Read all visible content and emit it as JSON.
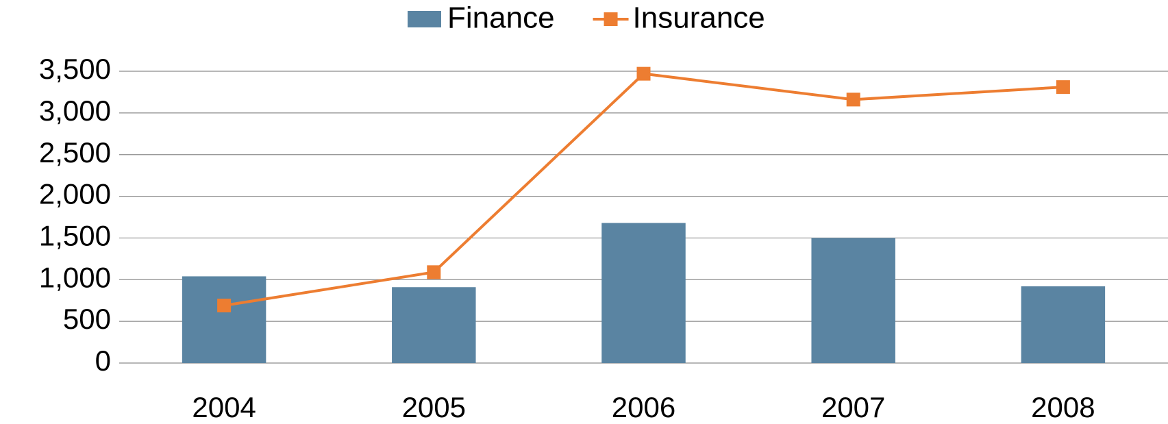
{
  "chart_data": {
    "type": "bar",
    "categories": [
      "2004",
      "2005",
      "2006",
      "2007",
      "2008"
    ],
    "series": [
      {
        "name": "Finance",
        "type": "bar",
        "color": "#5a84a2",
        "values": [
          1040,
          910,
          1680,
          1500,
          920
        ]
      },
      {
        "name": "Insurance",
        "type": "line",
        "color": "#ed7d31",
        "values": [
          690,
          1090,
          3470,
          3160,
          3310
        ]
      }
    ],
    "ylim": [
      0,
      3500
    ],
    "yticks": [
      0,
      500,
      {
        "value": 1000,
        "label": "1,000"
      },
      {
        "value": 1500,
        "label": "1,500"
      },
      {
        "value": 2000,
        "label": "2,000"
      },
      {
        "value": 2500,
        "label": "2,500"
      },
      {
        "value": 3000,
        "label": "3,000"
      },
      {
        "value": 3500,
        "label": "3,500"
      }
    ],
    "grid": true,
    "legend": "top"
  }
}
